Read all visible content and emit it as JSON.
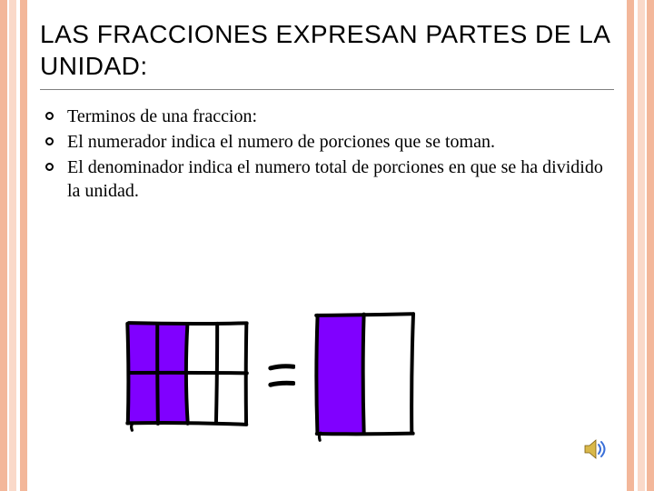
{
  "theme": {
    "bar_colors": [
      "#f3b79a",
      "#fad9c9",
      "#f3b79a"
    ],
    "bar_positions_left": [
      0,
      10,
      22
    ],
    "bar_positions_right": [
      0,
      10,
      22
    ],
    "title_underline_color": "#808080",
    "bullet_border_color": "#000000",
    "background_color": "#ffffff"
  },
  "title": "LAS FRACCIONES EXPRESAN PARTES DE LA UNIDAD:",
  "bullets": [
    "Terminos de una fraccion:",
    "El numerador indica el numero de porciones que se toman.",
    "El denominador indica el numero total de porciones en que se ha dividido la unidad."
  ],
  "figure": {
    "type": "infographic",
    "description": "Two hand-drawn colored grids showing equivalent fractions with an equals sign between them",
    "fill_color": "#8000ff",
    "stroke_color": "#000000",
    "stroke_width": 4,
    "left_grid": {
      "rows": 2,
      "cols": 4,
      "width": 130,
      "height": 110,
      "filled_cols": 2
    },
    "equals_height": 28,
    "right_grid": {
      "rows": 1,
      "cols": 2,
      "width": 105,
      "height": 130,
      "filled_cols": 1
    }
  },
  "speaker_icon": {
    "body_color": "#d9b84a",
    "waves_color": "#3a6fd8"
  }
}
